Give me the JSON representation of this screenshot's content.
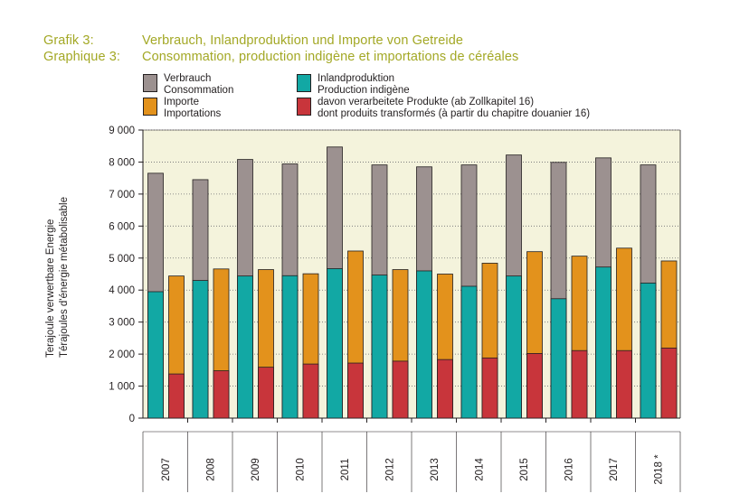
{
  "title": {
    "de_label": "Grafik 3:",
    "de_text": "Verbrauch, Inlandproduktion und Importe von Getreide",
    "fr_label": "Graphique 3:",
    "fr_text": "Consommation, production indigène et importations de céréales"
  },
  "colors": {
    "title": "#a3a825",
    "plot_bg": "#f4f3dc",
    "consumption": "#9c9190",
    "production": "#12a8a4",
    "imports": "#e3921c",
    "processed": "#c8353b"
  },
  "chart_data": {
    "type": "bar",
    "ylabel_de": "Terajoule verwertbare Energie",
    "ylabel_fr": "Térajoules d'énergie métabolisable",
    "ylim": [
      0,
      9000
    ],
    "yticks": [
      "0",
      "1 000",
      "2 000",
      "3 000",
      "4 000",
      "5 000",
      "6 000",
      "7 000",
      "8 000",
      "9 000"
    ],
    "grid": true,
    "legend_placement": "top",
    "categories": [
      "2007",
      "2008",
      "2009",
      "2010",
      "2011",
      "2012",
      "2013",
      "2014",
      "2015",
      "2016",
      "2017",
      "2018 *"
    ],
    "series": [
      {
        "name_de": "Verbrauch",
        "name_fr": "Consommation",
        "color_key": "consumption",
        "values": [
          7650,
          7450,
          8080,
          7940,
          8470,
          7910,
          7850,
          7910,
          8220,
          7990,
          8130,
          7910
        ]
      },
      {
        "name_de": "Inlandproduktion",
        "name_fr": "Production indigène",
        "color_key": "production",
        "values": [
          3950,
          4300,
          4440,
          4450,
          4670,
          4470,
          4600,
          4120,
          4440,
          3730,
          4720,
          4220
        ]
      },
      {
        "name_de": "Importe",
        "name_fr": "Importations",
        "color_key": "imports",
        "values": [
          4440,
          4660,
          4640,
          4510,
          5220,
          4640,
          4500,
          4840,
          5200,
          5060,
          5310,
          4910
        ]
      },
      {
        "name_de": "davon verarbeitete Produkte (ab Zollkapitel 16)",
        "name_fr": "dont produits transformés (à partir du chapitre douanier 16)",
        "color_key": "processed",
        "values": [
          1380,
          1480,
          1590,
          1690,
          1720,
          1780,
          1830,
          1880,
          2020,
          2110,
          2110,
          2190
        ]
      }
    ]
  }
}
